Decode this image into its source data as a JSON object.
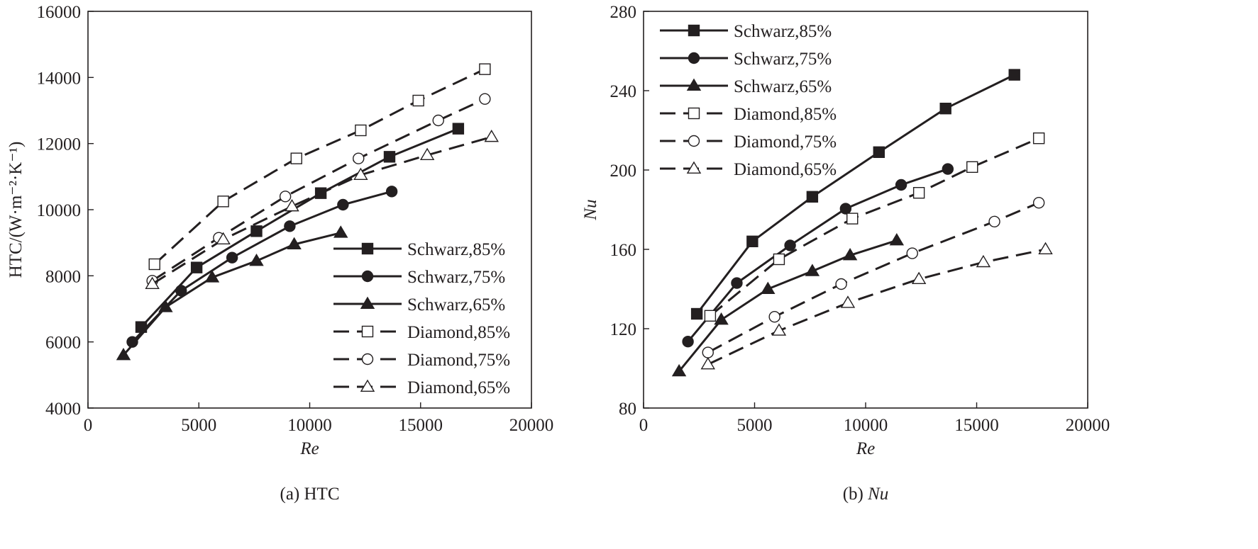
{
  "colors": {
    "ink": "#231f20",
    "background": "#ffffff"
  },
  "chart_data": [
    {
      "type": "line",
      "panel": "a",
      "caption_prefix": "(a) ",
      "caption_var": "HTC",
      "caption_var_italic": false,
      "title": "",
      "xlabel": "Re",
      "ylabel": "HTC/(W·m⁻²·K⁻¹)",
      "xlim": [
        0,
        20000
      ],
      "ylim": [
        4000,
        16000
      ],
      "xticks": [
        "0",
        "5000",
        "10000",
        "15000",
        "20000"
      ],
      "yticks": [
        "4000",
        "6000",
        "8000",
        "10000",
        "12000",
        "14000",
        "16000"
      ],
      "legend_position": "lower-right",
      "series": [
        {
          "name": "Schwarz,85%",
          "style": "solid",
          "marker": "square-filled",
          "x": [
            2400,
            4900,
            7600,
            10500,
            13600,
            16700
          ],
          "y": [
            6450,
            8250,
            9350,
            10500,
            11600,
            12450
          ]
        },
        {
          "name": "Schwarz,75%",
          "style": "solid",
          "marker": "circle-filled",
          "x": [
            2000,
            4200,
            6500,
            9100,
            11500,
            13700
          ],
          "y": [
            6000,
            7550,
            8550,
            9500,
            10150,
            10550
          ]
        },
        {
          "name": "Schwarz,65%",
          "style": "solid",
          "marker": "triangle-filled",
          "x": [
            1600,
            3500,
            5600,
            7600,
            9300,
            11400
          ],
          "y": [
            5600,
            7050,
            7950,
            8450,
            8950,
            9300
          ]
        },
        {
          "name": "Diamond,85%",
          "style": "dashed",
          "marker": "square-open",
          "x": [
            3000,
            6100,
            9400,
            12300,
            14900,
            17900
          ],
          "y": [
            8350,
            10250,
            11550,
            12400,
            13300,
            14250
          ]
        },
        {
          "name": "Diamond,75%",
          "style": "dashed",
          "marker": "circle-open",
          "x": [
            2900,
            5900,
            8900,
            12200,
            15800,
            17900
          ],
          "y": [
            7850,
            9150,
            10400,
            11550,
            12700,
            13350
          ]
        },
        {
          "name": "Diamond,65%",
          "style": "dashed",
          "marker": "triangle-open",
          "x": [
            2900,
            6100,
            9200,
            12300,
            15300,
            18200
          ],
          "y": [
            7750,
            9100,
            10100,
            11050,
            11650,
            12200
          ]
        }
      ]
    },
    {
      "type": "line",
      "panel": "b",
      "caption_prefix": "(b) ",
      "caption_var": "Nu",
      "caption_var_italic": true,
      "title": "",
      "xlabel": "Re",
      "ylabel": "Nu",
      "xlim": [
        0,
        20000
      ],
      "ylim": [
        80,
        280
      ],
      "xticks": [
        "0",
        "5000",
        "10000",
        "15000",
        "20000"
      ],
      "yticks": [
        "80",
        "120",
        "160",
        "200",
        "240",
        "280"
      ],
      "legend_position": "top-left",
      "series": [
        {
          "name": "Schwarz,85%",
          "style": "solid",
          "marker": "square-filled",
          "x": [
            2400,
            4900,
            7600,
            10600,
            13600,
            16700
          ],
          "y": [
            127.5,
            164,
            186.5,
            209,
            231,
            248
          ]
        },
        {
          "name": "Schwarz,75%",
          "style": "solid",
          "marker": "circle-filled",
          "x": [
            2000,
            4200,
            6600,
            9100,
            11600,
            13700
          ],
          "y": [
            113.5,
            143,
            162,
            180.5,
            192.5,
            200.5
          ]
        },
        {
          "name": "Schwarz,65%",
          "style": "solid",
          "marker": "triangle-filled",
          "x": [
            1600,
            3500,
            5600,
            7600,
            9300,
            11400
          ],
          "y": [
            98.5,
            124.5,
            140,
            149,
            157,
            164.5
          ]
        },
        {
          "name": "Diamond,85%",
          "style": "dashed",
          "marker": "square-open",
          "x": [
            3000,
            6100,
            9400,
            12400,
            14800,
            17800
          ],
          "y": [
            126.5,
            155,
            175.5,
            188.5,
            201.5,
            216
          ]
        },
        {
          "name": "Diamond,75%",
          "style": "dashed",
          "marker": "circle-open",
          "x": [
            2900,
            5900,
            8900,
            12100,
            15800,
            17800
          ],
          "y": [
            108,
            126,
            142.5,
            158,
            174,
            183.5
          ]
        },
        {
          "name": "Diamond,65%",
          "style": "dashed",
          "marker": "triangle-open",
          "x": [
            2900,
            6100,
            9200,
            12400,
            15300,
            18100
          ],
          "y": [
            102,
            119,
            133,
            145,
            153.5,
            160
          ]
        }
      ]
    }
  ]
}
